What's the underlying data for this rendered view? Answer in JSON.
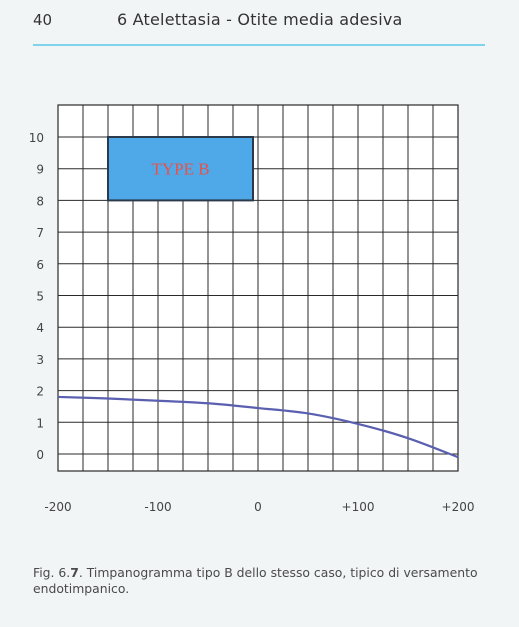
{
  "header": {
    "page_number": "40",
    "chapter_title": "6 Atelettasia - Otite media adesiva"
  },
  "caption": {
    "prefix": "Fig. 6.",
    "number": "7",
    "text": ". Timpanogramma tipo B dello stesso caso, tipico di versamento endotimpanico."
  },
  "chart_data": {
    "type": "line",
    "title": "",
    "xlabel": "",
    "ylabel": "",
    "xlim": [
      -200,
      200
    ],
    "ylim": [
      0,
      10
    ],
    "x_ticks": [
      -200,
      -100,
      0,
      100,
      200
    ],
    "x_tick_labels": [
      "-200",
      "-100",
      "0",
      "+100",
      "+200"
    ],
    "y_ticks": [
      0,
      1,
      2,
      3,
      4,
      5,
      6,
      7,
      8,
      9,
      10
    ],
    "y_tick_labels": [
      "0",
      "1",
      "2",
      "3",
      "4",
      "5",
      "6",
      "7",
      "8",
      "9",
      "10"
    ],
    "grid": true,
    "grid_x_step": 25,
    "series": [
      {
        "color": "#5a5fb0",
        "x": [
          -200,
          -150,
          -100,
          -50,
          0,
          50,
          100,
          150,
          200
        ],
        "y": [
          1.8,
          1.75,
          1.68,
          1.6,
          1.45,
          1.28,
          0.95,
          0.5,
          -0.1
        ]
      }
    ],
    "annotation": {
      "text": "TYPE B",
      "x_range": [
        -150,
        -5
      ],
      "y_range": [
        8,
        10
      ],
      "fill": "#4fa8e8",
      "text_color": "#e8524a"
    }
  }
}
